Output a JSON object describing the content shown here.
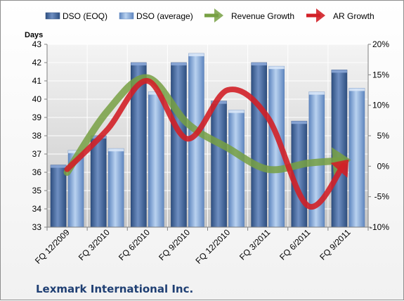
{
  "chart_data": {
    "type": "bar",
    "company": "Lexmark International Inc.",
    "ylabel": "Days",
    "ylim": [
      33,
      43
    ],
    "y2lim": [
      -10,
      20
    ],
    "y2unit": "%",
    "legend_position": "top",
    "grid": true,
    "categories": [
      "FQ 12/2009",
      "FQ 3/2010",
      "FQ 6/2010",
      "FQ 9/2010",
      "FQ 12/2010",
      "FQ 3/2011",
      "FQ 6/2011",
      "FQ 9/2011"
    ],
    "y_ticks": [
      33,
      34,
      35,
      36,
      37,
      38,
      39,
      40,
      41,
      42,
      43
    ],
    "y2_ticks": [
      "-10%",
      "-5%",
      "0%",
      "5%",
      "10%",
      "15%",
      "20%"
    ],
    "bar_series": [
      {
        "name": "DSO (EOQ)",
        "color": "#4a6fa5",
        "values": [
          36.4,
          38.0,
          42.0,
          42.0,
          39.9,
          42.0,
          38.8,
          41.6
        ]
      },
      {
        "name": "DSO (average)",
        "color": "#8fb4e3",
        "values": [
          37.2,
          37.3,
          40.4,
          42.5,
          39.4,
          41.8,
          40.4,
          40.6
        ]
      }
    ],
    "line_series": [
      {
        "name": "Revenue Growth",
        "color": "#77a043",
        "axis": "right",
        "values": [
          -1,
          9,
          14.5,
          7,
          3,
          -0.5,
          0.5,
          1
        ]
      },
      {
        "name": "AR Growth",
        "color": "#d22027",
        "axis": "right",
        "values": [
          -0.5,
          6,
          14,
          4.5,
          12.5,
          8,
          -6.5,
          1
        ]
      }
    ]
  }
}
